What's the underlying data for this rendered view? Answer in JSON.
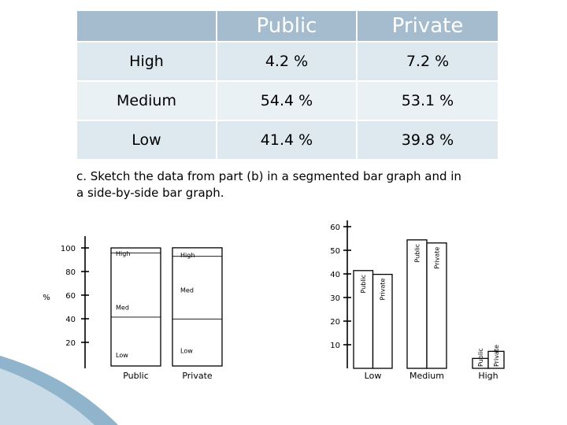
{
  "table": {
    "headers": [
      "",
      "Public",
      "Private"
    ],
    "rows": [
      {
        "label": "High",
        "public": "4.2 %",
        "private": "7.2 %"
      },
      {
        "label": "Medium",
        "public": "54.4 %",
        "private": "53.1 %"
      },
      {
        "label": "Low",
        "public": "41.4 %",
        "private": "39.8 %"
      }
    ]
  },
  "question": "c. Sketch the data from part (b) in a segmented bar graph and in a side-by-side bar graph.",
  "chart_data": [
    {
      "type": "bar",
      "stacked": true,
      "ylabel": "%",
      "yticks": [
        20,
        40,
        60,
        80,
        100
      ],
      "categories": [
        "Public",
        "Private"
      ],
      "series": [
        {
          "name": "Low",
          "values": [
            41.4,
            39.8
          ]
        },
        {
          "name": "Med",
          "values": [
            54.4,
            53.1
          ]
        },
        {
          "name": "High",
          "values": [
            4.2,
            7.2
          ]
        }
      ],
      "bar_labels": [
        {
          "high": "High",
          "med": "Med",
          "low": "Low"
        },
        {
          "high": "High",
          "med": "Med",
          "low": "Low"
        }
      ]
    },
    {
      "type": "bar",
      "grouped": true,
      "yticks": [
        10,
        20,
        30,
        40,
        50,
        60
      ],
      "categories": [
        "Low",
        "Medium",
        "High"
      ],
      "series": [
        {
          "name": "Public",
          "values": [
            41.4,
            54.4,
            4.2
          ]
        },
        {
          "name": "Private",
          "values": [
            39.8,
            53.1,
            7.2
          ]
        }
      ]
    }
  ]
}
